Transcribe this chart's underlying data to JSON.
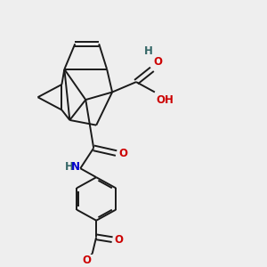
{
  "bg_color": "#eeeeee",
  "bond_color": "#1a1a1a",
  "o_color": "#cc0000",
  "n_color": "#0000cc",
  "h_color": "#336666",
  "line_width": 1.4,
  "figsize": [
    3.0,
    3.0
  ],
  "dpi": 100,
  "xlim": [
    0,
    10
  ],
  "ylim": [
    0,
    10
  ]
}
